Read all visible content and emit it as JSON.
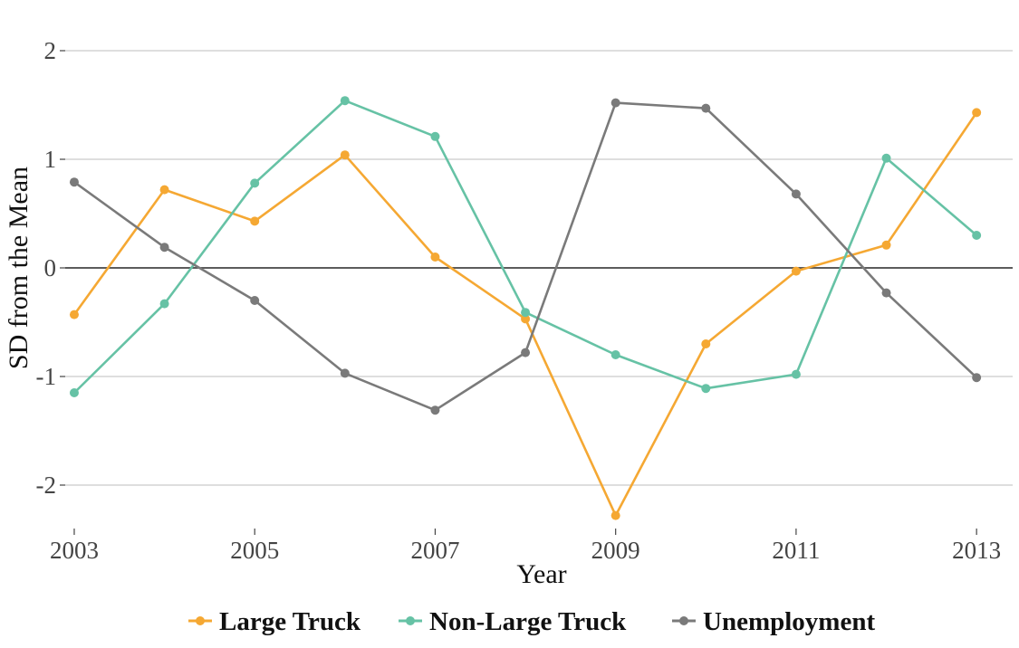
{
  "chart_data": {
    "type": "line",
    "title": "",
    "xlabel": "Year",
    "ylabel": "SD from the Mean",
    "x": [
      2003,
      2004,
      2005,
      2006,
      2007,
      2008,
      2009,
      2010,
      2011,
      2012,
      2013
    ],
    "x_tick_labels": [
      "2003",
      "2005",
      "2007",
      "2009",
      "2011",
      "2013"
    ],
    "y_tick_labels": [
      "2",
      "1",
      "0",
      "-1",
      "-2"
    ],
    "y_ticks": [
      2,
      1,
      0,
      -1,
      -2
    ],
    "xlim": [
      2002.9,
      2013.4
    ],
    "ylim": [
      -2.4,
      2.1
    ],
    "grid": true,
    "zero_line": true,
    "legend_position": "bottom",
    "series": [
      {
        "name": "Large Truck",
        "color": "#F5A833",
        "values": [
          -0.43,
          0.72,
          0.43,
          1.04,
          0.1,
          -0.47,
          -2.28,
          -0.7,
          -0.03,
          0.21,
          1.43
        ]
      },
      {
        "name": "Non-Large Truck",
        "color": "#66C2A5",
        "values": [
          -1.15,
          -0.33,
          0.78,
          1.54,
          1.21,
          -0.41,
          -0.8,
          -1.11,
          -0.98,
          1.01,
          0.3
        ]
      },
      {
        "name": "Unemployment",
        "color": "#7A7A7A",
        "values": [
          0.79,
          0.19,
          -0.3,
          -0.97,
          -1.31,
          -0.78,
          1.52,
          1.47,
          0.68,
          -0.23,
          -1.01
        ]
      }
    ]
  }
}
